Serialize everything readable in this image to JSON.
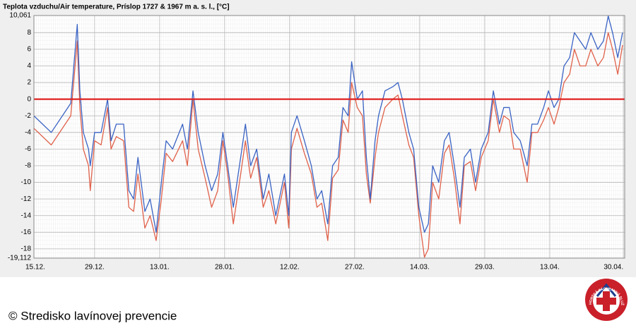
{
  "chart_data": {
    "type": "line",
    "title": "Teplota vzduchu/Air temperature, Príslop 1727 & 1967 m a. s. l., [°C]",
    "credit": "© Stredisko lavínovej prevencie",
    "logo_text": "HORSKÁ ZÁCHRANNÁ SLUŽBA",
    "x": [
      0,
      4,
      8.5,
      10,
      10.6,
      11.4,
      12.6,
      13,
      14,
      15.5,
      17,
      17.8,
      19,
      20.7,
      21.9,
      23,
      24,
      25.6,
      26.8,
      28.2,
      29.4,
      30.5,
      32,
      34.3,
      35.4,
      36.7,
      37.9,
      39.5,
      41,
      42.4,
      43.6,
      44.7,
      46,
      47.7,
      48.8,
      50,
      51.4,
      52.9,
      54.2,
      55.8,
      57.8,
      58.8,
      59.4,
      60.7,
      62.4,
      64,
      65.3,
      66.4,
      67.8,
      68.9,
      70.2,
      71.3,
      72.5,
      73.3,
      74.6,
      75.8,
      76.7,
      77.6,
      78.7,
      79.5,
      81,
      82.8,
      84,
      85,
      86.5,
      87.6,
      88.8,
      90.1,
      91,
      92,
      93.4,
      94.7,
      95.8,
      97,
      98.3,
      99.3,
      100.7,
      101.9,
      103.2,
      104.8,
      106,
      107.4,
      108.4,
      109.7,
      110.7,
      112.2,
      113.8,
      114.9,
      116.2,
      117.6,
      118.7,
      120,
      121.1,
      122.3,
      123.6,
      124.7,
      126,
      127.3,
      128.5,
      130.1,
      131.4,
      132.5,
      133.5,
      134.7,
      135.8
    ],
    "series": [
      {
        "color": "#3a63c4",
        "values": [
          -2,
          -4,
          -0.5,
          9,
          1,
          -4,
          -6,
          -8,
          -4,
          -4,
          0,
          -5,
          -3,
          -3,
          -11,
          -12,
          -7,
          -13.5,
          -12,
          -16,
          -10,
          -5,
          -6,
          -3,
          -6,
          1,
          -4,
          -8,
          -11,
          -9,
          -4,
          -8,
          -13,
          -7,
          -3,
          -8,
          -6,
          -12,
          -9,
          -14,
          -9,
          -14,
          -4,
          -2,
          -5,
          -8,
          -12,
          -11,
          -15,
          -8,
          -7,
          -1,
          -2,
          4.5,
          0,
          1,
          -7,
          -12,
          -5,
          -2,
          1,
          1.5,
          2,
          0,
          -4,
          -6,
          -13,
          -16,
          -15,
          -8,
          -10,
          -5,
          -4,
          -8,
          -13,
          -7,
          -6,
          -10,
          -6,
          -4,
          1,
          -3,
          -1,
          -1,
          -4,
          -5,
          -8,
          -3,
          -3,
          -1,
          1,
          -1,
          0,
          4,
          5,
          8,
          7,
          6,
          8,
          6,
          7,
          10,
          8,
          5,
          8
        ]
      },
      {
        "color": "#e0614a",
        "values": [
          -3.5,
          -5.5,
          -2,
          7,
          -1,
          -6,
          -8,
          -11,
          -5,
          -5.5,
          -1,
          -6,
          -4.5,
          -5,
          -13,
          -13.5,
          -9,
          -15.5,
          -14,
          -17,
          -12,
          -6.5,
          -7.5,
          -5,
          -8,
          0,
          -6,
          -9.5,
          -13,
          -11,
          -5,
          -9,
          -15,
          -9,
          -5,
          -9.5,
          -7,
          -13,
          -11,
          -15,
          -10,
          -15.5,
          -6,
          -3.5,
          -6.5,
          -9,
          -13,
          -12.5,
          -17,
          -9.5,
          -8.5,
          -2.5,
          -4,
          2,
          -1,
          -2,
          -9,
          -12.5,
          -7,
          -4,
          -1,
          0,
          0.5,
          -2,
          -5.5,
          -7,
          -14,
          -19,
          -18,
          -10,
          -12,
          -6.5,
          -5.5,
          -9.5,
          -15,
          -8,
          -7.5,
          -11,
          -7,
          -5,
          0,
          -4,
          -2,
          -2.5,
          -6,
          -6,
          -10,
          -4,
          -4,
          -2.5,
          -1,
          -3,
          -1,
          2,
          3,
          6,
          4,
          4,
          6,
          4,
          5,
          8,
          6,
          3,
          6.5
        ]
      }
    ],
    "reference_line": {
      "value": 0,
      "color": "#e02020"
    },
    "xlim": [
      0,
      136.3
    ],
    "xticks": [
      {
        "value": 0,
        "label": "15.12."
      },
      {
        "value": 14,
        "label": "29.12."
      },
      {
        "value": 29,
        "label": "13.01."
      },
      {
        "value": 44,
        "label": "28.01."
      },
      {
        "value": 59,
        "label": "12.02."
      },
      {
        "value": 74,
        "label": "27.02."
      },
      {
        "value": 89,
        "label": "14.03."
      },
      {
        "value": 104,
        "label": "29.03."
      },
      {
        "value": 119,
        "label": "13.04."
      },
      {
        "value": 136,
        "label": "30.04."
      }
    ],
    "ylim": [
      -19.112,
      10.061
    ],
    "yticks": [
      {
        "value": 10.061,
        "label": "10,061"
      },
      8,
      6,
      4,
      2,
      0,
      -2,
      -4,
      -6,
      -8,
      -10,
      -12,
      -14,
      -16,
      -18,
      {
        "value": -19.112,
        "label": "-19,112"
      }
    ],
    "grid": true
  }
}
